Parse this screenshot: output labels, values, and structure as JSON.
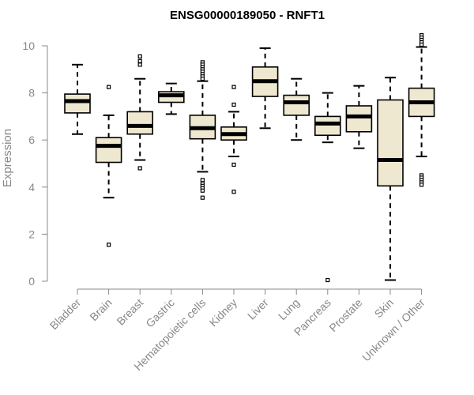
{
  "chart_data": {
    "type": "boxplot",
    "title": "ENSG00000189050 - RNFT1",
    "ylabel": "Expression",
    "xlabel": "",
    "ylim": [
      0,
      10
    ],
    "yticks": [
      0,
      2,
      4,
      6,
      8,
      10
    ],
    "grid": false,
    "legend": "none",
    "box_fill": "#efe8d0",
    "box_stroke": "#000000",
    "axis_color": "#888888",
    "categories": [
      "Bladder",
      "Brain",
      "Breast",
      "Gastric",
      "Hematopoietic cells",
      "Kidney",
      "Liver",
      "Lung",
      "Pancreas",
      "Prostate",
      "Skin",
      "Unknown / Other"
    ],
    "boxes": [
      {
        "q1": 7.15,
        "median": 7.65,
        "q3": 7.95,
        "whisker_low": 6.25,
        "whisker_high": 9.2,
        "outliers": []
      },
      {
        "q1": 5.05,
        "median": 5.75,
        "q3": 6.1,
        "whisker_low": 3.55,
        "whisker_high": 7.05,
        "outliers": [
          8.25,
          1.55
        ]
      },
      {
        "q1": 6.25,
        "median": 6.6,
        "q3": 7.2,
        "whisker_low": 5.15,
        "whisker_high": 8.6,
        "outliers": [
          9.55,
          9.35,
          9.2,
          4.8
        ]
      },
      {
        "q1": 7.6,
        "median": 7.9,
        "q3": 8.05,
        "whisker_low": 7.1,
        "whisker_high": 8.4,
        "outliers": []
      },
      {
        "q1": 6.05,
        "median": 6.5,
        "q3": 7.05,
        "whisker_low": 4.65,
        "whisker_high": 8.5,
        "outliers": [
          9.3,
          9.2,
          9.1,
          9.0,
          8.9,
          8.8,
          8.7,
          8.6,
          4.3,
          4.15,
          4.05,
          3.95,
          3.85,
          3.55
        ]
      },
      {
        "q1": 6.0,
        "median": 6.25,
        "q3": 6.55,
        "whisker_low": 5.3,
        "whisker_high": 7.2,
        "outliers": [
          8.25,
          7.5,
          4.95,
          3.8
        ]
      },
      {
        "q1": 7.85,
        "median": 8.5,
        "q3": 9.1,
        "whisker_low": 6.5,
        "whisker_high": 9.9,
        "outliers": []
      },
      {
        "q1": 7.05,
        "median": 7.6,
        "q3": 7.9,
        "whisker_low": 6.0,
        "whisker_high": 8.6,
        "outliers": []
      },
      {
        "q1": 6.2,
        "median": 6.7,
        "q3": 7.0,
        "whisker_low": 5.9,
        "whisker_high": 8.0,
        "outliers": [
          0.05
        ]
      },
      {
        "q1": 6.35,
        "median": 7.0,
        "q3": 7.45,
        "whisker_low": 5.65,
        "whisker_high": 8.3,
        "outliers": []
      },
      {
        "q1": 4.05,
        "median": 5.15,
        "q3": 7.7,
        "whisker_low": 0.05,
        "whisker_high": 8.65,
        "outliers": []
      },
      {
        "q1": 7.0,
        "median": 7.6,
        "q3": 8.2,
        "whisker_low": 5.3,
        "whisker_high": 9.95,
        "outliers": [
          10.45,
          10.35,
          10.25,
          10.15,
          10.05,
          4.5,
          4.4,
          4.3,
          4.2,
          4.1
        ]
      }
    ]
  }
}
